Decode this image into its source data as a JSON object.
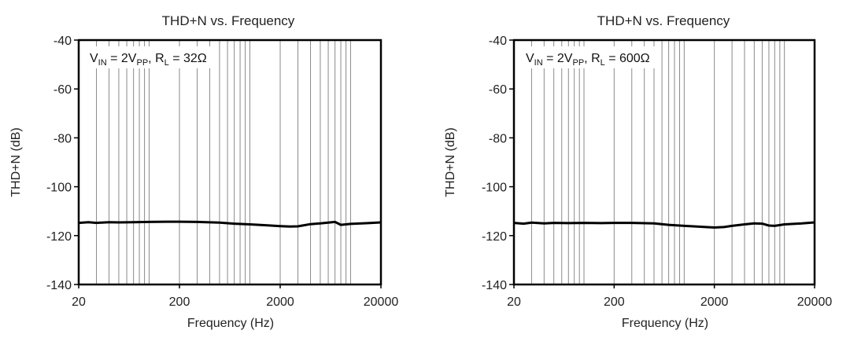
{
  "chart_data": [
    {
      "type": "line",
      "title": "THD+N vs. Frequency",
      "xlabel": "Frequency (Hz)",
      "ylabel": "THD+N (dB)",
      "xscale": "log",
      "xlim": [
        20,
        20000
      ],
      "ylim": [
        -140,
        -40
      ],
      "xticks": [
        20,
        200,
        2000,
        20000
      ],
      "xtick_labels": [
        "20",
        "200",
        "2000",
        "20000"
      ],
      "yticks": [
        -40,
        -60,
        -80,
        -100,
        -120,
        -140
      ],
      "ytick_labels": [
        "-40",
        "-60",
        "-80",
        "-100",
        "-120",
        "-140"
      ],
      "grid": "vertical log",
      "annotation": {
        "v_main": "V",
        "v_sub": "IN",
        "v_eq": " = 2V",
        "v_sub2": "PP",
        "r_comma": ", R",
        "r_sub": "L",
        "r_eq": " = 32Ω"
      },
      "series": [
        {
          "name": "THD+N",
          "x": [
            20,
            25,
            30,
            40,
            50,
            70,
            100,
            150,
            200,
            300,
            500,
            700,
            1000,
            1500,
            2000,
            2500,
            3000,
            4000,
            5000,
            6000,
            7000,
            8000,
            10000,
            15000,
            20000
          ],
          "y": [
            -114.8,
            -114.5,
            -114.8,
            -114.5,
            -114.6,
            -114.5,
            -114.4,
            -114.3,
            -114.3,
            -114.4,
            -114.7,
            -115.1,
            -115.4,
            -115.8,
            -116.1,
            -116.3,
            -116.2,
            -115.3,
            -115.0,
            -114.7,
            -114.4,
            -115.6,
            -115.2,
            -114.9,
            -114.6
          ]
        }
      ]
    },
    {
      "type": "line",
      "title": "THD+N vs. Frequency",
      "xlabel": "Frequency (Hz)",
      "ylabel": "THD+N (dB)",
      "xscale": "log",
      "xlim": [
        20,
        20000
      ],
      "ylim": [
        -140,
        -40
      ],
      "xticks": [
        20,
        200,
        2000,
        20000
      ],
      "xtick_labels": [
        "20",
        "200",
        "2000",
        "20000"
      ],
      "yticks": [
        -40,
        -60,
        -80,
        -100,
        -120,
        -140
      ],
      "ytick_labels": [
        "-40",
        "-60",
        "-80",
        "-100",
        "-120",
        "-140"
      ],
      "grid": "vertical log",
      "annotation": {
        "v_main": "V",
        "v_sub": "IN",
        "v_eq": " = 2V",
        "v_sub2": "PP",
        "r_comma": ", R",
        "r_sub": "L",
        "r_eq": " = 600Ω"
      },
      "series": [
        {
          "name": "THD+N",
          "x": [
            20,
            25,
            30,
            40,
            50,
            70,
            100,
            150,
            200,
            300,
            500,
            700,
            1000,
            1500,
            2000,
            2500,
            3000,
            4000,
            5000,
            6000,
            7000,
            8000,
            10000,
            15000,
            20000
          ],
          "y": [
            -114.8,
            -115.1,
            -114.7,
            -115.0,
            -114.8,
            -114.9,
            -114.8,
            -114.9,
            -114.8,
            -114.8,
            -115.0,
            -115.6,
            -116.0,
            -116.4,
            -116.7,
            -116.5,
            -116.0,
            -115.4,
            -115.0,
            -115.1,
            -115.9,
            -116.0,
            -115.4,
            -115.0,
            -114.6
          ]
        }
      ]
    }
  ]
}
